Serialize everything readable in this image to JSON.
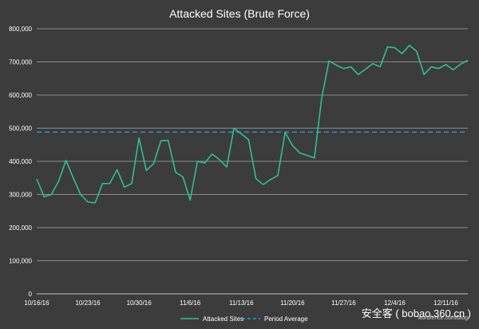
{
  "chart_data": {
    "type": "line",
    "title": "Attacked Sites (Brute Force)",
    "xlabel": "",
    "ylabel": "",
    "ylim": [
      0,
      800000
    ],
    "y_ticks": [
      0,
      100000,
      200000,
      300000,
      400000,
      500000,
      600000,
      700000,
      800000
    ],
    "y_tick_labels": [
      "0",
      "100,000",
      "200,000",
      "300,000",
      "400,000",
      "500,000",
      "600,000",
      "700,000",
      "800,000"
    ],
    "x_tick_labels": [
      "10/16/16",
      "10/23/16",
      "10/30/16",
      "11/6/16",
      "11/13/16",
      "11/20/16",
      "11/27/16",
      "12/4/16",
      "12/11/16"
    ],
    "x_tick_day_index": [
      0,
      7,
      14,
      21,
      28,
      35,
      42,
      49,
      56
    ],
    "grid": true,
    "legend": "bottom",
    "x_start": "2016-10-16",
    "series": [
      {
        "name": "Attacked Sites",
        "color": "#2ebf94",
        "style": "solid",
        "values": [
          347000,
          293000,
          300000,
          340000,
          403000,
          350000,
          300000,
          277000,
          275000,
          333000,
          333000,
          375000,
          322000,
          333000,
          470000,
          372000,
          393000,
          462000,
          463000,
          367000,
          353000,
          283000,
          400000,
          395000,
          422000,
          405000,
          383000,
          500000,
          483000,
          465000,
          348000,
          330000,
          345000,
          357000,
          487000,
          448000,
          425000,
          418000,
          410000,
          590000,
          703000,
          690000,
          680000,
          685000,
          662000,
          678000,
          695000,
          685000,
          745000,
          743000,
          725000,
          750000,
          732000,
          662000,
          685000,
          680000,
          692000,
          676000,
          693000,
          705000
        ]
      },
      {
        "name": "Period Average",
        "color": "#2a9fd6",
        "style": "dashed",
        "value": 488000
      }
    ]
  },
  "watermark": {
    "url": "wordfence.com/blog",
    "brand": "安全客 ( bobao.360.cn )"
  }
}
